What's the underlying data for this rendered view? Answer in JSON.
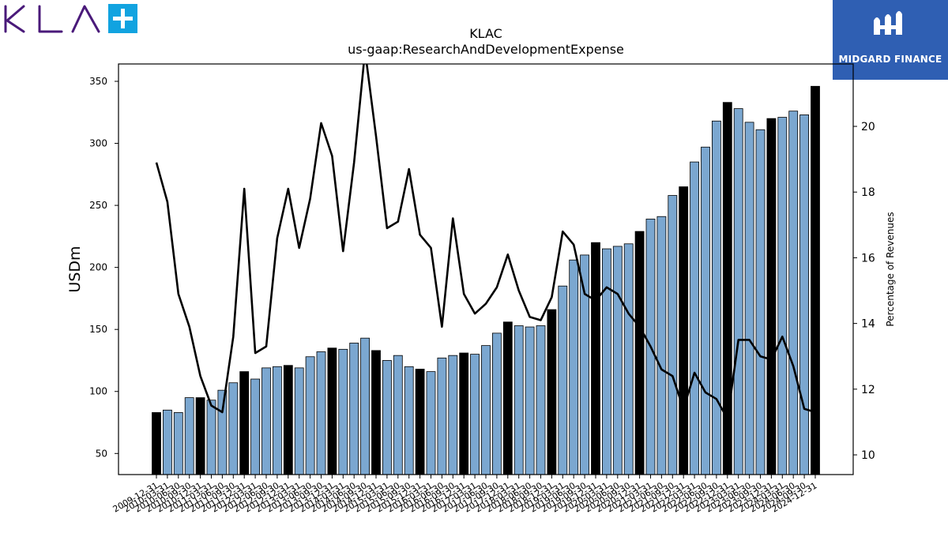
{
  "logos": {
    "left_text": "KLA",
    "right_text": "MIDGARD FINANCE"
  },
  "chart_data": {
    "type": "bar",
    "title": "KLAC",
    "subtitle": "us-gaap:ResearchAndDevelopmentExpense",
    "ylabel": "USDm",
    "y2label": "Percentage of Revenues",
    "ylim": [
      33,
      364
    ],
    "y2lim": [
      9.4,
      21.9
    ],
    "yticks": [
      50,
      100,
      150,
      200,
      250,
      300,
      350
    ],
    "y2ticks": [
      10,
      12,
      14,
      16,
      18,
      20
    ],
    "colors": {
      "fiscal_q4_bar": "#000000",
      "bar": "#7ba7d0",
      "line": "#000000"
    },
    "categories": [
      "2009-12-31",
      "2010-03-31",
      "2010-06-30",
      "2010-09-30",
      "2010-12-31",
      "2011-03-31",
      "2011-06-30",
      "2011-09-30",
      "2011-12-31",
      "2012-03-31",
      "2012-06-30",
      "2012-09-30",
      "2012-12-31",
      "2013-03-31",
      "2013-06-30",
      "2013-09-30",
      "2013-12-31",
      "2014-03-31",
      "2014-06-30",
      "2014-09-30",
      "2014-12-31",
      "2015-03-31",
      "2015-06-30",
      "2015-09-30",
      "2015-12-31",
      "2016-03-31",
      "2016-06-30",
      "2016-09-30",
      "2016-12-31",
      "2017-03-31",
      "2017-06-30",
      "2017-09-30",
      "2017-12-31",
      "2018-03-31",
      "2018-06-30",
      "2018-09-30",
      "2018-12-31",
      "2019-03-31",
      "2019-06-30",
      "2019-09-30",
      "2019-12-31",
      "2020-03-31",
      "2020-06-30",
      "2020-09-30",
      "2020-12-31",
      "2021-03-31",
      "2021-06-30",
      "2021-09-30",
      "2021-12-31",
      "2022-03-31",
      "2022-06-30",
      "2022-09-30",
      "2022-12-31",
      "2023-03-31",
      "2023-06-30",
      "2023-09-30",
      "2023-12-31",
      "2024-03-31",
      "2024-06-30",
      "2024-09-30",
      "2024-12-31"
    ],
    "xtick_labels": [
      "2009-12-31",
      "2010-03-31",
      "2010-06-30",
      "2010-09-30",
      "2010-12-31",
      "2011-03-31",
      "2011-06-30",
      "2011-09-30",
      "2011-12-31",
      "2012-03-31",
      "2012-06-30",
      "2012-09-30",
      "2012-12-31",
      "2013-03-31",
      "2013-06-30",
      "2013-09-30",
      "2013-12-31",
      "2014-03-31",
      "2014-06-30",
      "2014-09-30",
      "2014-12-31",
      "2015-03-31",
      "2015-06-30",
      "2015-09-30",
      "2015-12-31",
      "2016-03-31",
      "2016-06-30",
      "2016-09-30",
      "2016-12-31",
      "2017-03-31",
      "2017-06-30",
      "2017-09-30",
      "2017-12-31",
      "2018-03-31",
      "2018-06-30",
      "2018-09-30",
      "2018-12-31",
      "2019-03-31",
      "2019-06-30",
      "2019-09-30",
      "2019-12-31",
      "2020-03-31",
      "2020-06-30",
      "2020-09-30",
      "2020-12-31",
      "2021-03-31",
      "2021-06-30",
      "2021-09-30",
      "2021-12-31",
      "2022-03-31",
      "2022-06-30",
      "2022-09-30",
      "2022-12-31",
      "2023-03-31",
      "2023-06-30",
      "2023-09-30",
      "2023-12-31",
      "2024-03-31",
      "2024-06-30",
      "2024-09-30",
      "2024-12-31"
    ],
    "series": [
      {
        "kind": "bar",
        "values": [
          83,
          85,
          83,
          95,
          95,
          93,
          101,
          107,
          116,
          110,
          119,
          120,
          121,
          119,
          128,
          132,
          135,
          134,
          139,
          143,
          133,
          125,
          129,
          120,
          118,
          116,
          127,
          129,
          131,
          130,
          137,
          147,
          156,
          153,
          152,
          153,
          166,
          185,
          206,
          210,
          220,
          215,
          217,
          219,
          229,
          239,
          241,
          258,
          265,
          285,
          297,
          318,
          333,
          328,
          317,
          311,
          320,
          321,
          326,
          323,
          346
        ],
        "fiscal_q4": [
          1,
          0,
          0,
          0,
          1,
          0,
          0,
          0,
          1,
          0,
          0,
          0,
          1,
          0,
          0,
          0,
          1,
          0,
          0,
          0,
          1,
          0,
          0,
          0,
          1,
          0,
          0,
          0,
          1,
          0,
          0,
          0,
          1,
          0,
          0,
          0,
          1,
          0,
          0,
          0,
          1,
          0,
          0,
          0,
          1,
          0,
          0,
          0,
          1,
          0,
          0,
          0,
          1,
          0,
          0,
          0,
          1,
          0,
          0,
          0,
          1
        ]
      },
      {
        "kind": "line",
        "axis": "right",
        "values": [
          18.9,
          17.7,
          14.9,
          13.9,
          12.4,
          11.5,
          11.3,
          13.6,
          18.1,
          13.1,
          13.3,
          16.6,
          18.1,
          16.3,
          17.8,
          20.1,
          19.1,
          16.2,
          18.9,
          22.3,
          19.7,
          16.9,
          17.1,
          18.7,
          16.7,
          16.3,
          13.9,
          17.2,
          14.9,
          14.3,
          14.6,
          15.1,
          16.1,
          15.0,
          14.2,
          14.1,
          14.8,
          16.8,
          16.4,
          14.9,
          14.7,
          15.1,
          14.9,
          14.3,
          13.9,
          13.3,
          12.6,
          12.4,
          11.4,
          12.5,
          11.9,
          11.7,
          11.1,
          13.5,
          13.5,
          13.0,
          12.9,
          13.6,
          12.7,
          11.4,
          11.3
        ]
      }
    ]
  }
}
